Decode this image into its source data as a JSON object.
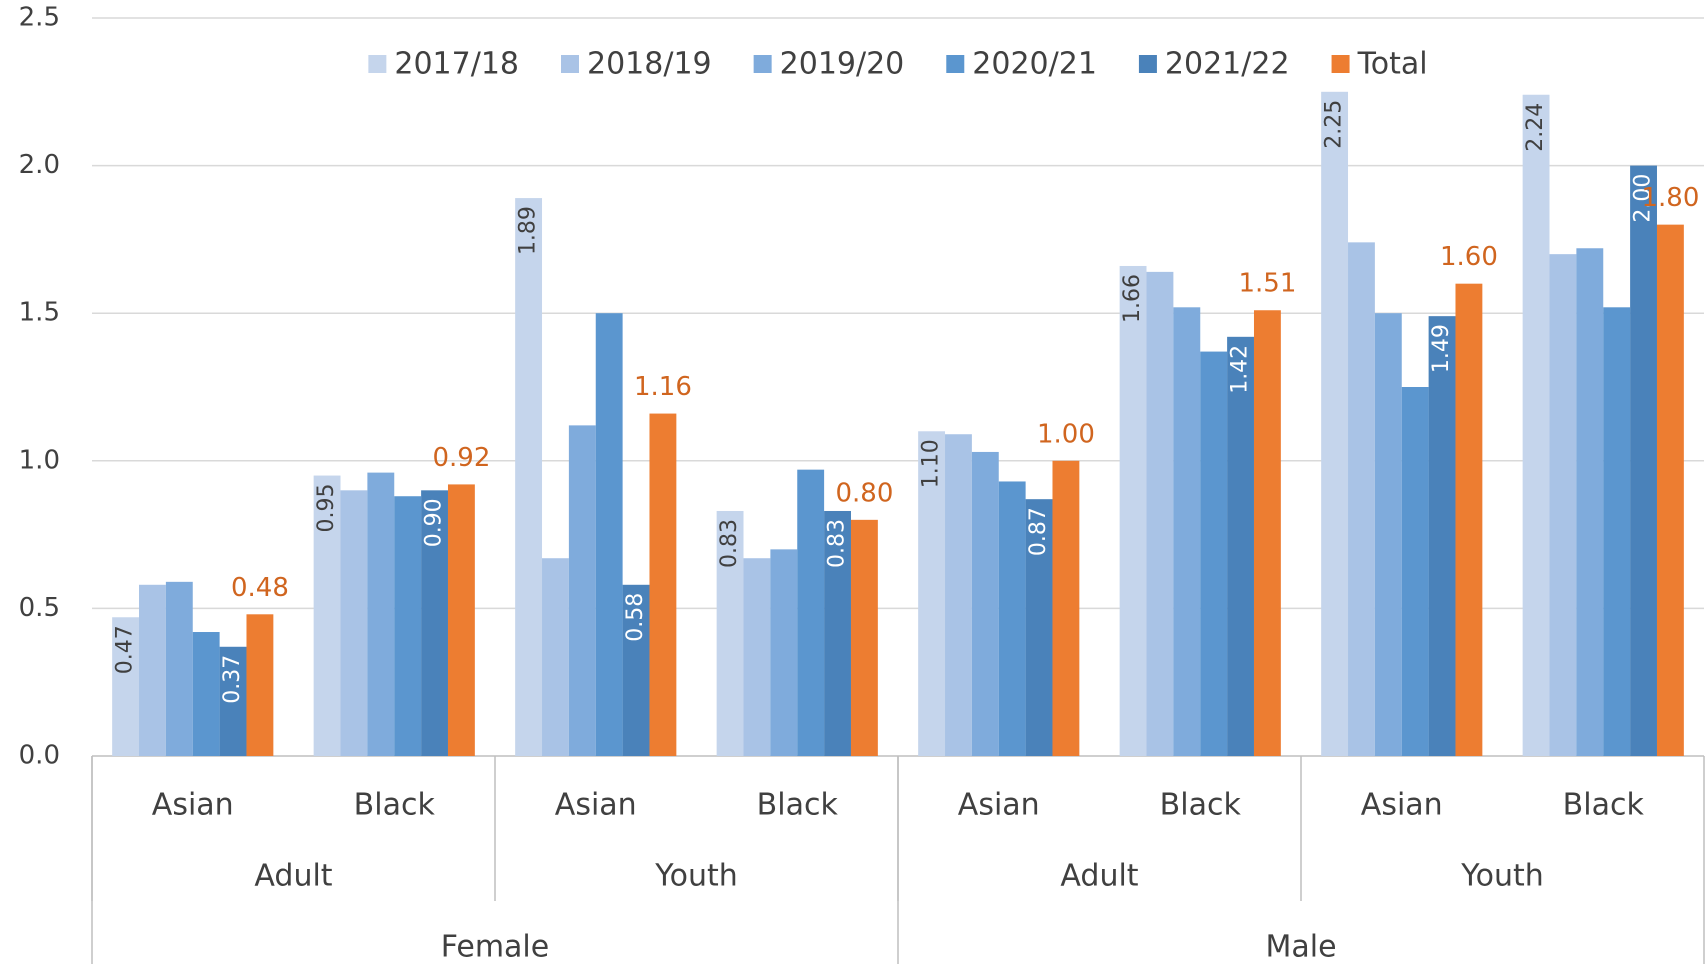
{
  "chart_data": {
    "type": "bar",
    "categories": [
      "Asian",
      "Black",
      "Asian",
      "Black",
      "Asian",
      "Black",
      "Asian",
      "Black"
    ],
    "category_levels": [
      [
        "Adult",
        "Youth",
        "Adult",
        "Youth"
      ],
      [
        "Female",
        "Male"
      ]
    ],
    "series": [
      {
        "name": "2017/18",
        "color": "#c5d5ec",
        "label_color": "#404040",
        "label_position": "inside_end",
        "values": [
          0.47,
          0.95,
          1.89,
          0.83,
          1.1,
          1.66,
          2.25,
          2.24
        ],
        "value_labels": [
          "0.47",
          "0.95",
          "1.89",
          "0.83",
          "1.10",
          "1.66",
          "2.25",
          "2.24"
        ]
      },
      {
        "name": "2018/19",
        "color": "#a9c3e6",
        "values": [
          0.58,
          0.9,
          0.67,
          0.67,
          1.09,
          1.64,
          1.74,
          1.7
        ]
      },
      {
        "name": "2019/20",
        "color": "#7fabdc",
        "values": [
          0.59,
          0.96,
          1.12,
          0.7,
          1.03,
          1.52,
          1.5,
          1.72
        ]
      },
      {
        "name": "2020/21",
        "color": "#5b96cf",
        "values": [
          0.42,
          0.88,
          1.5,
          0.97,
          0.93,
          1.37,
          1.25,
          1.52
        ]
      },
      {
        "name": "2021/22",
        "color": "#4a82ba",
        "label_color": "#ffffff",
        "label_position": "inside_end",
        "values": [
          0.37,
          0.9,
          0.58,
          0.83,
          0.87,
          1.42,
          1.49,
          2.0
        ],
        "value_labels": [
          "0.37",
          "0.90",
          "0.58",
          "0.83",
          "0.87",
          "1.42",
          "1.49",
          "2.00"
        ]
      },
      {
        "name": "Total",
        "color": "#ed7d31",
        "label_color": "#d0651f",
        "label_position": "outside_end",
        "values": [
          0.48,
          0.92,
          1.16,
          0.8,
          1.0,
          1.51,
          1.6,
          1.8
        ],
        "value_labels": [
          "0.48",
          "0.92",
          "1.16",
          "0.80",
          "1.00",
          "1.51",
          "1.60",
          "1.80"
        ]
      }
    ],
    "ylim": [
      0,
      2.5
    ],
    "yticks": [
      {
        "value": 0,
        "label": "0.0"
      },
      0.5,
      {
        "value": 1,
        "label": "1.0"
      },
      1.5,
      {
        "value": 2,
        "label": "2.0"
      },
      2.5
    ],
    "grid": true,
    "legend": "top"
  }
}
